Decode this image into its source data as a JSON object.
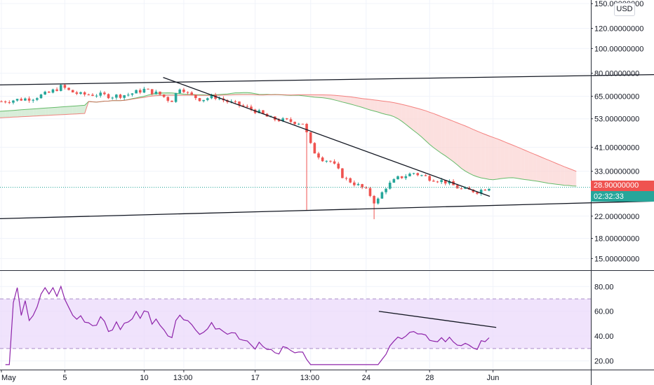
{
  "chart_data": [
    {
      "type": "candlestick",
      "scale": "log",
      "grid": true,
      "ylim": [
        13.5,
        155
      ],
      "price_axis_labels": [
        "150.00000000",
        "120.00000000",
        "100.00000000",
        "80.00000000",
        "65.00000000",
        "53.00000000",
        "41.00000000",
        "33.00000000",
        "22.00000000",
        "18.00000000",
        "15.00000000"
      ],
      "price_axis_values": [
        150,
        120,
        100,
        80,
        65,
        53,
        41,
        33,
        22,
        18,
        15
      ],
      "x_tick_labels": [
        "May",
        "5",
        "10",
        "13:00",
        "17",
        "13:00",
        "24",
        "28",
        "Jun"
      ],
      "trendlines": [
        {
          "name": "upper-channel-line",
          "points": [
            [
              0,
              72
            ],
            [
              932,
              79
            ]
          ]
        },
        {
          "name": "lower-channel-line",
          "points": [
            [
              0,
              21.5
            ],
            [
              932,
              25.2
            ]
          ]
        },
        {
          "name": "descending-trendline",
          "points": [
            [
              11.2,
              77
            ],
            [
              31.8,
              26.3
            ]
          ]
        }
      ],
      "current_price": {
        "value": "28.56625750",
        "countdown": "02:32:33",
        "color": "#26a69a"
      },
      "high_marker": {
        "value": "28.90000000",
        "color": "#ef5350"
      },
      "colors": {
        "up": "#26a69a",
        "down": "#ef5350",
        "cloud_bull": "#a5d6a7",
        "cloud_bear": "#f7a9a7"
      }
    },
    {
      "type": "line",
      "name": "rsi",
      "ylim": [
        13,
        92
      ],
      "y_tick_labels": [
        "80.00",
        "60.00",
        "40.00",
        "20.00"
      ],
      "y_tick_values": [
        80,
        60,
        40,
        20
      ],
      "band": [
        30,
        70
      ],
      "line_color": "#8e24aa",
      "band_color": "#e9d7fb",
      "divergence_line": {
        "points": [
          [
            24.8,
            60
          ],
          [
            32.2,
            47
          ]
        ]
      }
    }
  ],
  "currency_label": "USD"
}
